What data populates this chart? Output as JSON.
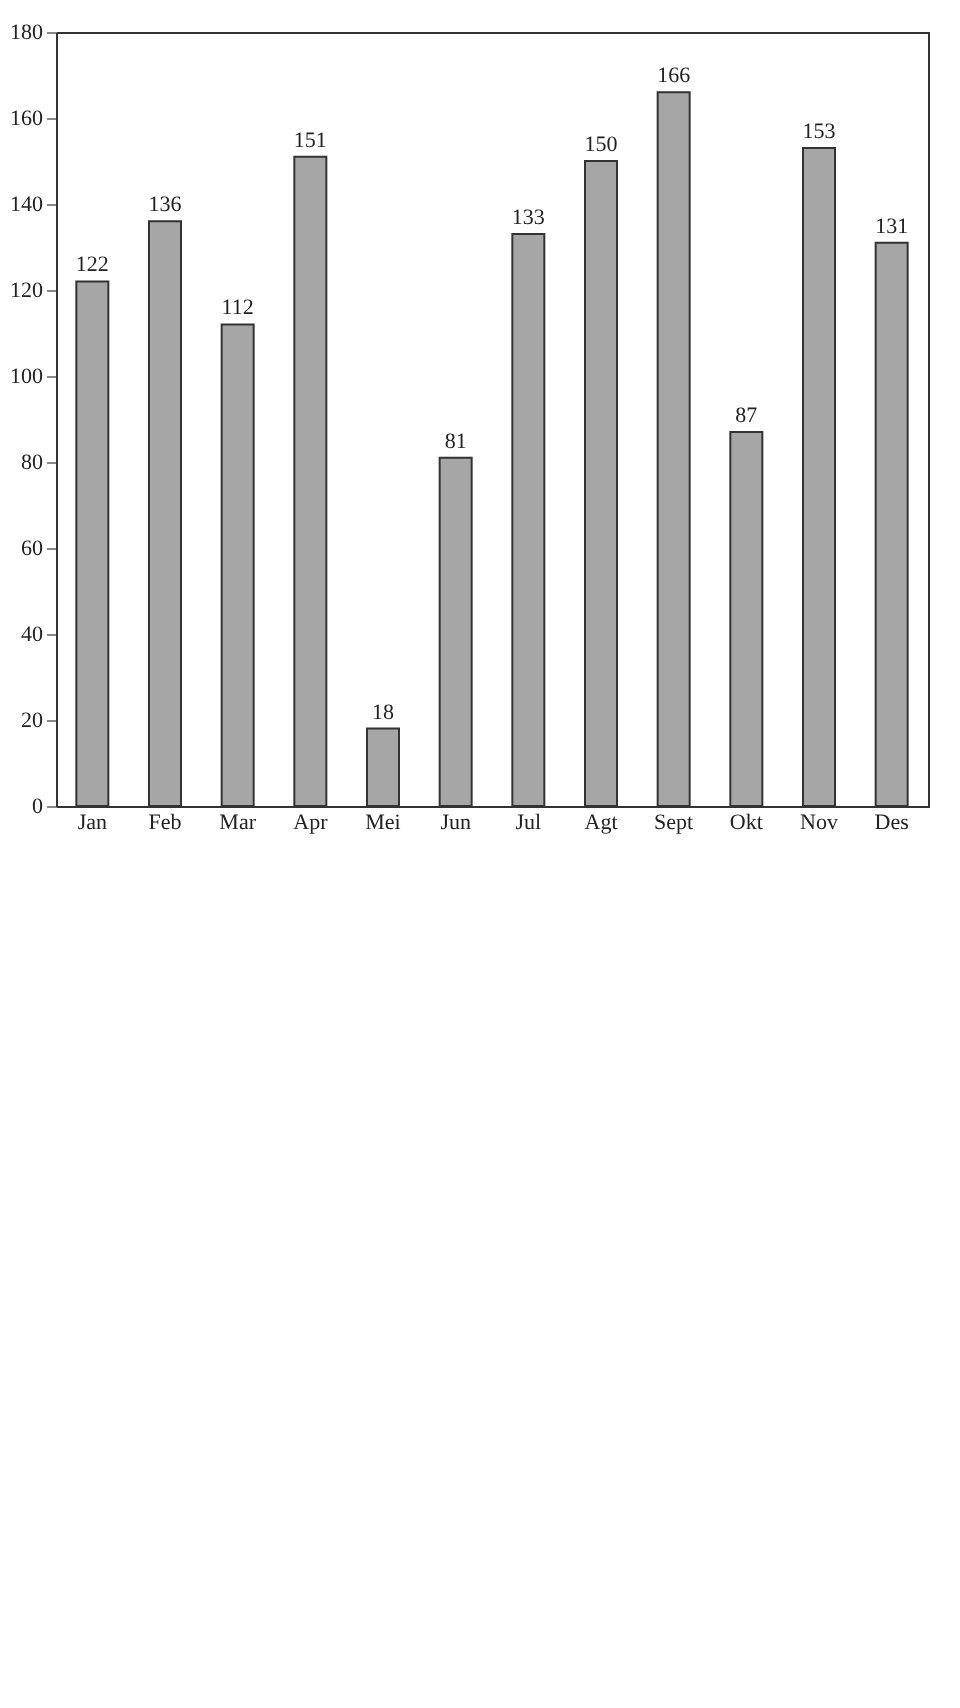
{
  "chart_data": {
    "type": "bar",
    "categories": [
      "Jan",
      "Feb",
      "Mar",
      "Apr",
      "Mei",
      "Jun",
      "Jul",
      "Agt",
      "Sept",
      "Okt",
      "Nov",
      "Des"
    ],
    "values": [
      122,
      136,
      112,
      151,
      18,
      81,
      133,
      150,
      166,
      87,
      153,
      131
    ],
    "color": "#a6a6a6",
    "ylim": [
      0,
      180
    ],
    "yticks": [
      0,
      20,
      40,
      60,
      80,
      100,
      120,
      140,
      160,
      180
    ],
    "grid": false,
    "data_labels": true
  }
}
